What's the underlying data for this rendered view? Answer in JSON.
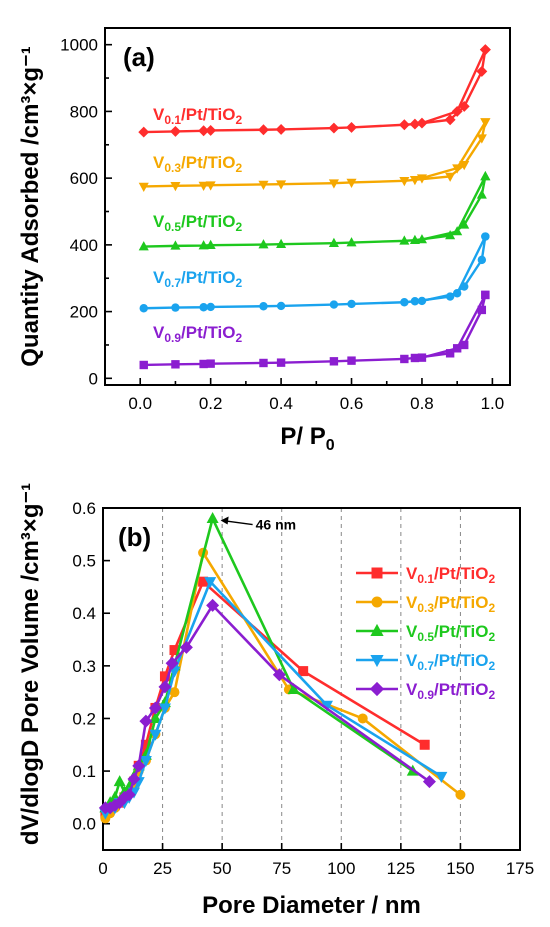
{
  "chart_data": [
    {
      "panel_label": "(a)",
      "type": "line",
      "xlabel": "P/ P",
      "xlabel_sub": "0",
      "ylabel": "Quantity Adsorbed /cm³×g⁻¹",
      "xlim": [
        -0.1,
        1.05
      ],
      "ylim": [
        -20,
        1050
      ],
      "xticks": [
        "0.0",
        "0.2",
        "0.4",
        "0.6",
        "0.8",
        "1.0"
      ],
      "yticks": [
        "0",
        "200",
        "400",
        "600",
        "800",
        "1000"
      ],
      "series": [
        {
          "name_main": "V",
          "name_sub": "0.1",
          "name_rest": "/Pt/TiO",
          "name_sub2": "2",
          "color": "#ff2d2d",
          "marker": "diamond",
          "x": [
            0.01,
            0.1,
            0.18,
            0.2,
            0.35,
            0.4,
            0.55,
            0.6,
            0.75,
            0.78,
            0.88,
            0.92,
            0.97,
            0.98,
            0.98,
            0.9,
            0.8
          ],
          "y": [
            738,
            740,
            742,
            743,
            745,
            746,
            750,
            752,
            760,
            762,
            775,
            815,
            920,
            985,
            985,
            800,
            765
          ]
        },
        {
          "name_main": "V",
          "name_sub": "0.3",
          "name_rest": "/Pt/TiO",
          "name_sub2": "2",
          "color": "#f5a800",
          "marker": "triangle-down",
          "x": [
            0.01,
            0.1,
            0.18,
            0.2,
            0.35,
            0.4,
            0.55,
            0.6,
            0.75,
            0.78,
            0.88,
            0.92,
            0.97,
            0.98,
            0.98,
            0.9,
            0.8
          ],
          "y": [
            575,
            577,
            578,
            579,
            581,
            582,
            585,
            587,
            592,
            595,
            605,
            640,
            720,
            768,
            768,
            630,
            600
          ]
        },
        {
          "name_main": "V",
          "name_sub": "0.5",
          "name_rest": "/Pt/TiO",
          "name_sub2": "2",
          "color": "#1ec81e",
          "marker": "triangle-up",
          "x": [
            0.01,
            0.1,
            0.18,
            0.2,
            0.35,
            0.4,
            0.55,
            0.6,
            0.75,
            0.78,
            0.88,
            0.92,
            0.97,
            0.98,
            0.98,
            0.9,
            0.8
          ],
          "y": [
            395,
            397,
            398,
            399,
            401,
            402,
            405,
            407,
            412,
            414,
            428,
            460,
            550,
            605,
            605,
            440,
            416
          ]
        },
        {
          "name_main": "V",
          "name_sub": "0.7",
          "name_rest": "/Pt/TiO",
          "name_sub2": "2",
          "color": "#1aa3ee",
          "marker": "circle",
          "x": [
            0.01,
            0.1,
            0.18,
            0.2,
            0.35,
            0.4,
            0.55,
            0.6,
            0.75,
            0.78,
            0.88,
            0.92,
            0.97,
            0.98,
            0.98,
            0.9,
            0.8
          ],
          "y": [
            210,
            212,
            213,
            214,
            216,
            217,
            221,
            223,
            228,
            231,
            245,
            275,
            355,
            425,
            425,
            255,
            232
          ]
        },
        {
          "name_main": "V",
          "name_sub": "0.9",
          "name_rest": "/Pt/TiO",
          "name_sub2": "2",
          "color": "#8b1ed0",
          "marker": "square",
          "x": [
            0.01,
            0.1,
            0.18,
            0.2,
            0.35,
            0.4,
            0.55,
            0.6,
            0.75,
            0.78,
            0.88,
            0.92,
            0.97,
            0.98,
            0.98,
            0.9,
            0.8
          ],
          "y": [
            40,
            42,
            43,
            44,
            46,
            47,
            51,
            53,
            58,
            61,
            75,
            100,
            205,
            250,
            250,
            90,
            62
          ]
        }
      ]
    },
    {
      "panel_label": "(b)",
      "type": "line",
      "xlabel": "Pore Diameter / nm",
      "ylabel": "dV/dlogD Pore Volume /cm³×g⁻¹",
      "xlim": [
        0,
        175
      ],
      "ylim": [
        -0.05,
        0.6
      ],
      "xticks": [
        "0",
        "25",
        "50",
        "75",
        "100",
        "125",
        "150",
        "175"
      ],
      "yticks": [
        "0.0",
        "0.1",
        "0.2",
        "0.3",
        "0.4",
        "0.5",
        "0.6"
      ],
      "annotation": "46 nm",
      "series": [
        {
          "name_main": "V",
          "name_sub": "0.1",
          "name_rest": "/Pt/TiO",
          "name_sub2": "2",
          "color": "#ff2d2d",
          "marker": "square",
          "x": [
            1,
            3,
            5,
            7,
            9,
            11,
            13,
            15,
            18,
            22,
            26,
            30,
            42,
            84,
            135
          ],
          "y": [
            0.02,
            0.03,
            0.035,
            0.04,
            0.05,
            0.06,
            0.08,
            0.11,
            0.15,
            0.22,
            0.28,
            0.33,
            0.46,
            0.29,
            0.15
          ]
        },
        {
          "name_main": "V",
          "name_sub": "0.3",
          "name_rest": "/Pt/TiO",
          "name_sub2": "2",
          "color": "#f5a800",
          "marker": "circle",
          "x": [
            1,
            3,
            5,
            7,
            9,
            11,
            13,
            15,
            18,
            22,
            26,
            30,
            42,
            78,
            109,
            150
          ],
          "y": [
            0.01,
            0.02,
            0.03,
            0.04,
            0.05,
            0.06,
            0.07,
            0.1,
            0.12,
            0.17,
            0.22,
            0.25,
            0.515,
            0.255,
            0.2,
            0.055
          ]
        },
        {
          "name_main": "V",
          "name_sub": "0.5",
          "name_rest": "/Pt/TiO",
          "name_sub2": "2",
          "color": "#1ec81e",
          "marker": "triangle-up",
          "x": [
            1,
            3,
            5,
            7,
            9,
            11,
            13,
            15,
            18,
            22,
            26,
            30,
            46,
            80,
            130
          ],
          "y": [
            0.03,
            0.04,
            0.05,
            0.08,
            0.06,
            0.07,
            0.09,
            0.11,
            0.13,
            0.2,
            0.23,
            0.3,
            0.58,
            0.255,
            0.1
          ]
        },
        {
          "name_main": "V",
          "name_sub": "0.7",
          "name_rest": "/Pt/TiO",
          "name_sub2": "2",
          "color": "#1aa3ee",
          "marker": "triangle-down",
          "x": [
            1,
            3,
            5,
            7,
            9,
            11,
            13,
            15,
            18,
            22,
            26,
            30,
            45,
            94,
            142
          ],
          "y": [
            0.02,
            0.03,
            0.03,
            0.04,
            0.04,
            0.05,
            0.06,
            0.08,
            0.12,
            0.17,
            0.22,
            0.29,
            0.46,
            0.225,
            0.09
          ]
        },
        {
          "name_main": "V",
          "name_sub": "0.9",
          "name_rest": "/Pt/TiO",
          "name_sub2": "2",
          "color": "#8b1ed0",
          "marker": "diamond",
          "x": [
            1,
            3,
            5,
            7,
            9,
            11,
            13,
            15,
            18,
            22,
            26,
            29,
            35,
            46,
            74,
            137
          ],
          "y": [
            0.03,
            0.03,
            0.035,
            0.04,
            0.05,
            0.055,
            0.085,
            0.11,
            0.195,
            0.22,
            0.26,
            0.305,
            0.335,
            0.415,
            0.283,
            0.08
          ]
        }
      ]
    }
  ]
}
